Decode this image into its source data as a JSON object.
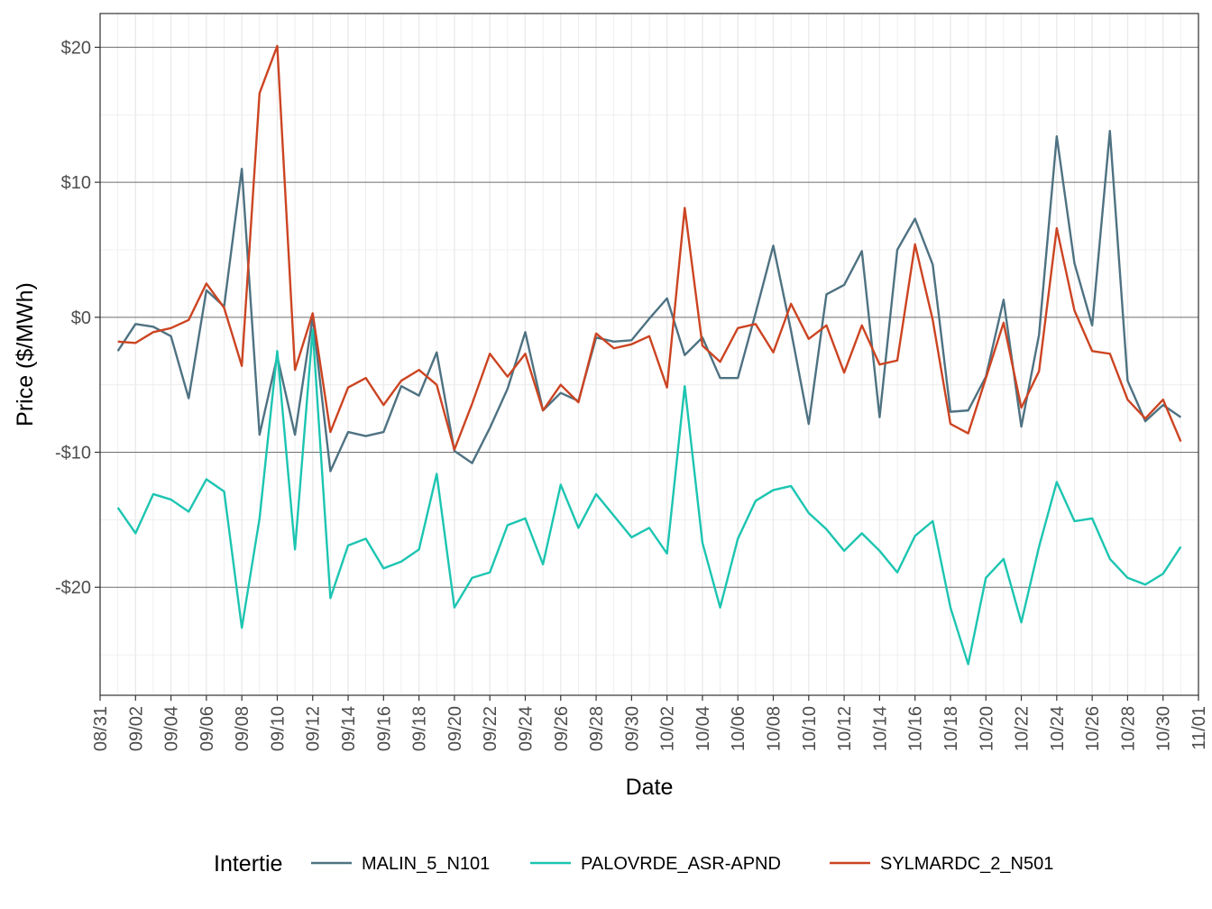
{
  "chart_data": {
    "type": "line",
    "xlabel": "Date",
    "ylabel": "Price ($/MWh)",
    "x_range": [
      "2021-08-31",
      "2021-11-01"
    ],
    "ylim": [
      -28,
      22.5
    ],
    "y_ticks": [
      20,
      10,
      0,
      -10,
      -20
    ],
    "y_tick_labels": [
      "$20",
      "$10",
      "$0",
      "-$10",
      "-$20"
    ],
    "x_tick_dates": [
      "2021-08-31",
      "2021-09-02",
      "2021-09-04",
      "2021-09-06",
      "2021-09-08",
      "2021-09-10",
      "2021-09-12",
      "2021-09-14",
      "2021-09-16",
      "2021-09-18",
      "2021-09-20",
      "2021-09-22",
      "2021-09-24",
      "2021-09-26",
      "2021-09-28",
      "2021-09-30",
      "2021-10-02",
      "2021-10-04",
      "2021-10-06",
      "2021-10-08",
      "2021-10-10",
      "2021-10-12",
      "2021-10-14",
      "2021-10-16",
      "2021-10-18",
      "2021-10-20",
      "2021-10-22",
      "2021-10-24",
      "2021-10-26",
      "2021-10-28",
      "2021-10-30",
      "2021-11-01"
    ],
    "x_tick_labels": [
      "08/31",
      "09/02",
      "09/04",
      "09/06",
      "09/08",
      "09/10",
      "09/12",
      "09/14",
      "09/16",
      "09/18",
      "09/20",
      "09/22",
      "09/24",
      "09/26",
      "09/28",
      "09/30",
      "10/02",
      "10/04",
      "10/06",
      "10/08",
      "10/10",
      "10/12",
      "10/14",
      "10/16",
      "10/18",
      "10/20",
      "10/22",
      "10/24",
      "10/26",
      "10/28",
      "10/30",
      "11/01"
    ],
    "grid": true,
    "legend": {
      "title": "Intertie",
      "position": "bottom"
    },
    "x_start": "2021-09-01",
    "series": [
      {
        "name": "MALIN_5_N101",
        "color": "#4e7282",
        "values": [
          -2.5,
          -0.5,
          -0.7,
          -1.4,
          -6,
          2,
          0.8,
          11,
          -8.7,
          -2.9,
          -8.7,
          0,
          -11.4,
          -8.5,
          -8.8,
          -8.5,
          -5.1,
          -5.8,
          -2.6,
          -9.9,
          -10.8,
          -8.2,
          -5.3,
          -1.1,
          -6.9,
          -5.6,
          -6.2,
          -1.5,
          -1.8,
          -1.7,
          -0.1,
          1.4,
          -2.8,
          -1.5,
          -4.5,
          -4.5,
          0.3,
          5.3,
          -1,
          -7.9,
          1.7,
          2.4,
          4.9,
          -7.4,
          5,
          7.3,
          3.9,
          -7,
          -6.9,
          -4.4,
          1.3,
          -8.1,
          -1.3,
          13.4,
          4,
          -0.6,
          13.8,
          -4.7,
          -7.7,
          -6.5,
          -7.4
        ]
      },
      {
        "name": "PALOVRDE_ASR-APND",
        "color": "#1cc5b1",
        "values": [
          -14.1,
          -16,
          -13.1,
          -13.5,
          -14.4,
          -12,
          -12.9,
          -23,
          -14.9,
          -2.5,
          -17.2,
          -0.9,
          -20.8,
          -16.9,
          -16.4,
          -18.6,
          -18.1,
          -17.2,
          -11.6,
          -21.5,
          -19.3,
          -18.9,
          -15.4,
          -14.9,
          -18.3,
          -12.4,
          -15.6,
          -13.1,
          -14.7,
          -16.3,
          -15.6,
          -17.5,
          -5.1,
          -16.7,
          -21.5,
          -16.4,
          -13.6,
          -12.8,
          -12.5,
          -14.5,
          -15.7,
          -17.3,
          -16,
          -17.3,
          -18.9,
          -16.2,
          -15.1,
          -21.5,
          -25.7,
          -19.3,
          -17.9,
          -22.6,
          -17,
          -12.2,
          -15.1,
          -14.9,
          -17.9,
          -19.3,
          -19.8,
          -19,
          -17
        ]
      },
      {
        "name": "SYLMARDC_2_N501",
        "color": "#cc4422",
        "values": [
          -1.8,
          -1.9,
          -1.1,
          -0.8,
          -0.2,
          2.5,
          0.7,
          -3.6,
          16.6,
          20.1,
          -3.9,
          0.3,
          -8.5,
          -5.2,
          -4.5,
          -6.5,
          -4.7,
          -3.9,
          -5,
          -9.8,
          -6.4,
          -2.7,
          -4.4,
          -2.7,
          -6.9,
          -5,
          -6.3,
          -1.2,
          -2.3,
          -2,
          -1.4,
          -5.2,
          8.1,
          -2.1,
          -3.3,
          -0.8,
          -0.5,
          -2.6,
          1,
          -1.6,
          -0.6,
          -4.1,
          -0.6,
          -3.5,
          -3.2,
          5.4,
          -0.2,
          -7.9,
          -8.6,
          -4.5,
          -0.4,
          -6.7,
          -4,
          6.6,
          0.5,
          -2.5,
          -2.7,
          -6.1,
          -7.5,
          -6.1,
          -9.2
        ]
      }
    ]
  }
}
